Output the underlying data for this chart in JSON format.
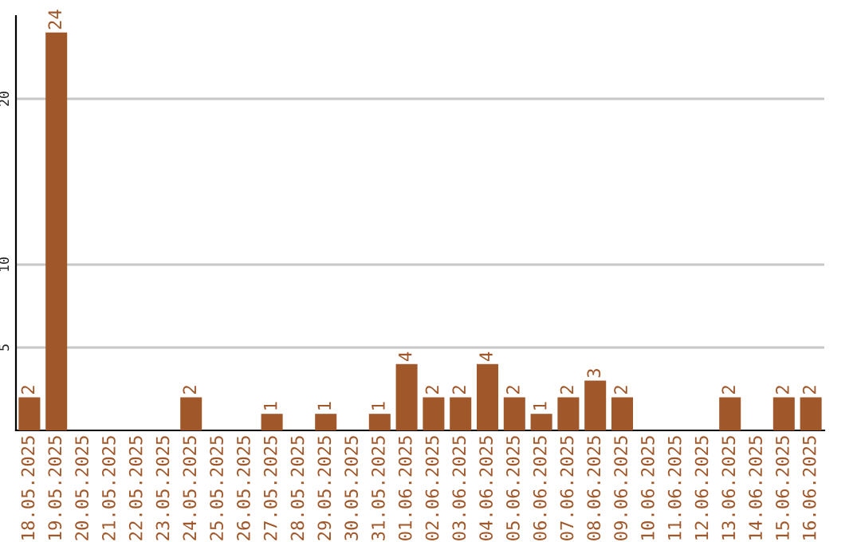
{
  "chart_data": {
    "type": "bar",
    "categories": [
      "18.05.2025",
      "19.05.2025",
      "20.05.2025",
      "21.05.2025",
      "22.05.2025",
      "23.05.2025",
      "24.05.2025",
      "25.05.2025",
      "26.05.2025",
      "27.05.2025",
      "28.05.2025",
      "29.05.2025",
      "30.05.2025",
      "31.05.2025",
      "01.06.2025",
      "02.06.2025",
      "03.06.2025",
      "04.06.2025",
      "05.06.2025",
      "06.06.2025",
      "07.06.2025",
      "08.06.2025",
      "09.06.2025",
      "10.06.2025",
      "11.06.2025",
      "12.06.2025",
      "13.06.2025",
      "14.06.2025",
      "15.06.2025",
      "16.06.2025"
    ],
    "values": [
      2,
      24,
      0,
      0,
      0,
      0,
      2,
      0,
      0,
      1,
      0,
      1,
      0,
      1,
      4,
      2,
      2,
      4,
      2,
      1,
      2,
      3,
      2,
      0,
      0,
      0,
      2,
      0,
      2,
      2
    ],
    "value_labels": [
      "2",
      "24",
      null,
      null,
      null,
      null,
      "2",
      null,
      null,
      "1",
      null,
      "1",
      null,
      "1",
      "4",
      "2",
      "2",
      "4",
      "2",
      "1",
      "2",
      "3",
      "2",
      null,
      null,
      null,
      "2",
      null,
      "2",
      "2"
    ],
    "color": "#a0572a",
    "ylim": [
      0,
      25
    ],
    "yticks": [
      5,
      10,
      20
    ],
    "grid": "y",
    "legend": false
  }
}
